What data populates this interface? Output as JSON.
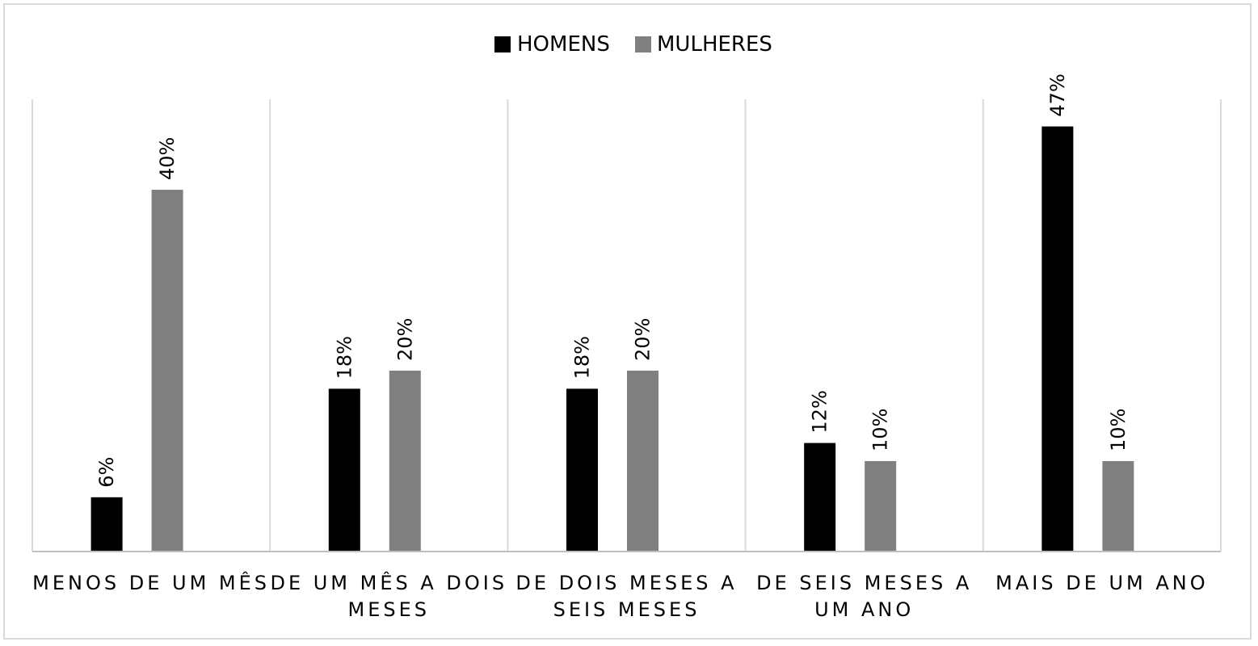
{
  "chart_data": {
    "type": "bar",
    "categories": [
      [
        "MENOS DE UM MÊS"
      ],
      [
        "DE UM MÊS A DOIS",
        "MESES"
      ],
      [
        "DE DOIS MESES A",
        "SEIS MESES"
      ],
      [
        "DE SEIS MESES A",
        "UM ANO"
      ],
      [
        "MAIS DE UM ANO"
      ]
    ],
    "series": [
      {
        "name": "HOMENS",
        "color": "#000000",
        "values": [
          6,
          18,
          18,
          12,
          47
        ],
        "labels": [
          "6%",
          "18%",
          "18%",
          "12%",
          "47%"
        ]
      },
      {
        "name": "MULHERES",
        "color": "#808080",
        "values": [
          40,
          20,
          20,
          10,
          10
        ],
        "labels": [
          "40%",
          "20%",
          "20%",
          "10%",
          "10%"
        ]
      }
    ],
    "ylim": [
      0,
      50
    ],
    "grid": "vertical category dividers",
    "legend": "top-center",
    "title": "",
    "xlabel": "",
    "ylabel": ""
  }
}
